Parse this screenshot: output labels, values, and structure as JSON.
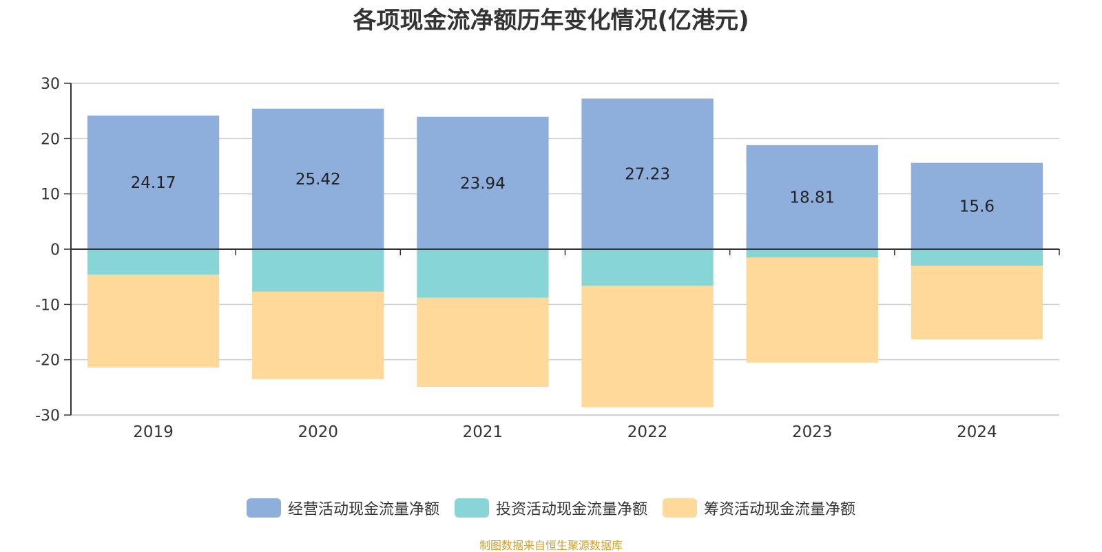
{
  "chart_data": {
    "type": "bar",
    "stacked": true,
    "title": "各项现金流净额历年变化情况(亿港元)",
    "categories": [
      "2019",
      "2020",
      "2021",
      "2022",
      "2023",
      "2024"
    ],
    "series": [
      {
        "name": "经营活动现金流量净额",
        "color": "#8eaedb",
        "values": [
          24.17,
          25.42,
          23.94,
          27.23,
          18.81,
          15.6
        ],
        "show_labels": true
      },
      {
        "name": "投资活动现金流量净额",
        "color": "#88d5d7",
        "values": [
          -4.6,
          -7.7,
          -8.8,
          -6.6,
          -1.5,
          -3.0
        ],
        "show_labels": false
      },
      {
        "name": "筹资活动现金流量净额",
        "color": "#fed999",
        "values": [
          -16.8,
          -15.8,
          -16.1,
          -22.0,
          -19.0,
          -13.3
        ],
        "show_labels": false
      }
    ],
    "yticks": [
      "30",
      "20",
      "10",
      "0",
      "-10",
      "-20",
      "-30"
    ],
    "ylim": [
      -30,
      30
    ],
    "grid": true,
    "legend_position": "bottom"
  },
  "source_note": "制图数据来自恒生聚源数据库",
  "colors": {
    "source_note": "#d4a12a",
    "axis": "#333333",
    "grid": "#cccccc"
  }
}
